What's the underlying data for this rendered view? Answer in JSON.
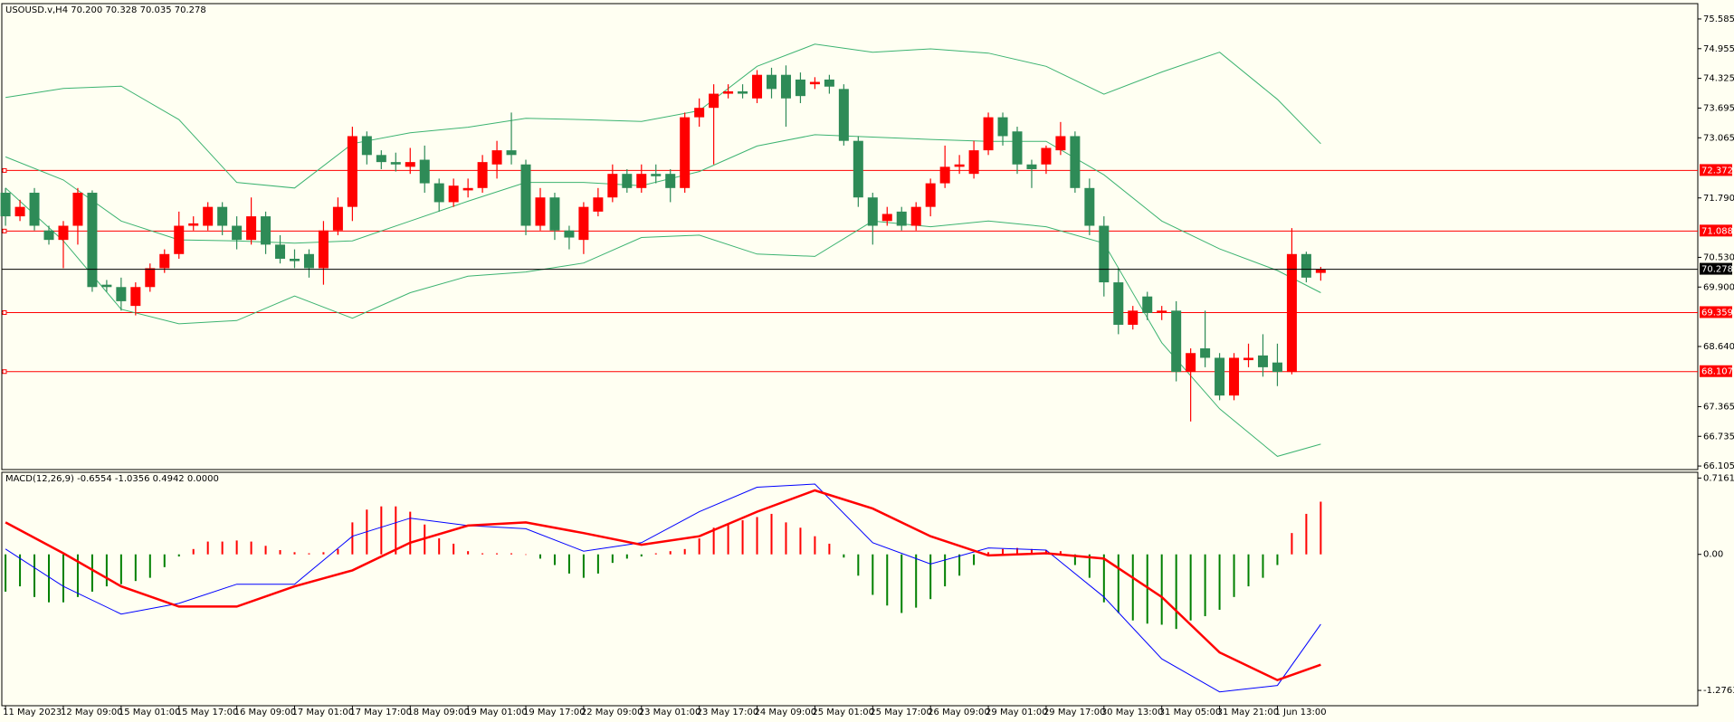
{
  "chart_data": [
    {
      "type": "candlestick",
      "title": "USOUSD.v,H4  70.200 70.328 70.035 70.278",
      "candles": {
        "open": [
          71.9,
          71.4,
          71.9,
          71.1,
          70.9,
          71.2,
          71.9,
          69.95,
          69.9,
          69.5,
          69.9,
          70.3,
          70.6,
          71.2,
          71.2,
          71.6,
          71.2,
          70.9,
          71.4,
          70.8,
          70.5,
          70.6,
          70.3,
          71.1,
          71.6,
          73.1,
          72.7,
          72.55,
          72.45,
          72.6,
          72.1,
          71.7,
          71.95,
          72.0,
          72.5,
          72.8,
          72.5,
          71.2,
          71.8,
          71.1,
          70.9,
          71.5,
          71.8,
          72.3,
          72.0,
          72.3,
          72.3,
          72.0,
          73.5,
          73.7,
          74.0,
          74.05,
          73.9,
          74.4,
          74.4,
          74.3,
          74.2,
          74.3,
          74.1,
          73.0,
          71.8,
          71.3,
          71.5,
          71.2,
          71.6,
          72.1,
          72.45,
          72.3,
          72.8,
          73.5,
          73.2,
          72.5,
          72.5,
          72.8,
          73.1,
          72.0,
          71.2,
          70.0,
          69.1,
          69.7,
          69.35,
          69.4,
          68.1,
          68.6,
          68.4,
          67.6,
          68.35,
          68.45,
          68.3,
          68.1,
          70.6,
          70.2
        ],
        "high": [
          72.0,
          71.75,
          72.0,
          71.2,
          71.3,
          72.0,
          71.95,
          70.05,
          70.1,
          70.0,
          70.4,
          70.7,
          71.5,
          71.4,
          71.7,
          71.7,
          71.4,
          71.8,
          71.5,
          71.0,
          70.7,
          70.7,
          71.3,
          71.8,
          73.3,
          73.2,
          72.8,
          72.75,
          72.85,
          72.9,
          72.2,
          72.2,
          72.2,
          72.7,
          73.0,
          73.6,
          72.6,
          72.0,
          71.9,
          71.2,
          71.7,
          72.0,
          72.5,
          72.4,
          72.5,
          72.5,
          72.4,
          73.6,
          73.9,
          74.2,
          74.2,
          74.2,
          74.5,
          74.55,
          74.6,
          74.45,
          74.35,
          74.4,
          74.2,
          73.1,
          71.9,
          71.6,
          71.6,
          71.7,
          72.2,
          72.9,
          72.7,
          73.0,
          73.6,
          73.6,
          73.3,
          72.6,
          72.9,
          73.4,
          73.2,
          72.2,
          71.4,
          70.3,
          69.5,
          69.8,
          69.5,
          69.6,
          68.6,
          69.4,
          68.5,
          68.5,
          68.7,
          68.9,
          68.7,
          71.15,
          70.65,
          70.328
        ],
        "low": [
          71.2,
          71.3,
          71.1,
          70.8,
          70.3,
          70.8,
          69.8,
          69.8,
          69.4,
          69.3,
          69.8,
          70.2,
          70.5,
          71.1,
          71.1,
          71.0,
          70.7,
          70.8,
          70.6,
          70.4,
          70.3,
          70.1,
          69.95,
          71.0,
          71.3,
          72.5,
          72.4,
          72.35,
          72.3,
          71.9,
          71.5,
          71.6,
          71.8,
          71.9,
          72.2,
          72.5,
          71.0,
          71.1,
          70.9,
          70.7,
          70.6,
          71.4,
          71.7,
          71.9,
          71.9,
          72.1,
          71.7,
          71.9,
          73.3,
          72.5,
          73.9,
          73.9,
          73.8,
          73.9,
          73.3,
          73.8,
          74.1,
          74.0,
          72.9,
          71.6,
          70.8,
          71.2,
          71.1,
          71.1,
          71.4,
          72.0,
          72.3,
          72.2,
          72.7,
          72.9,
          72.3,
          72.0,
          72.3,
          72.7,
          71.9,
          71.0,
          69.7,
          68.9,
          69.0,
          69.2,
          69.2,
          67.9,
          67.05,
          68.2,
          67.5,
          67.5,
          68.2,
          68.0,
          67.8,
          68.05,
          70.0,
          70.035
        ],
        "close": [
          71.4,
          71.6,
          71.2,
          70.9,
          71.2,
          71.9,
          69.9,
          69.9,
          69.6,
          69.9,
          70.3,
          70.6,
          71.2,
          71.25,
          71.6,
          71.2,
          70.9,
          71.4,
          70.8,
          70.5,
          70.45,
          70.3,
          71.1,
          71.6,
          73.1,
          72.7,
          72.55,
          72.5,
          72.55,
          72.1,
          71.7,
          72.05,
          72.0,
          72.55,
          72.8,
          72.7,
          71.2,
          71.8,
          71.1,
          70.95,
          71.6,
          71.8,
          72.3,
          72.0,
          72.3,
          72.25,
          72.0,
          73.5,
          73.7,
          74.0,
          74.05,
          74.0,
          74.4,
          74.1,
          73.9,
          73.95,
          74.25,
          74.15,
          73.0,
          71.8,
          71.2,
          71.45,
          71.2,
          71.6,
          72.1,
          72.45,
          72.5,
          72.8,
          73.5,
          73.1,
          72.5,
          72.4,
          72.85,
          73.1,
          72.0,
          71.2,
          70.0,
          69.1,
          69.4,
          69.35,
          69.4,
          68.1,
          68.5,
          68.4,
          67.6,
          68.4,
          68.4,
          68.2,
          68.1,
          70.6,
          70.1,
          70.278
        ]
      },
      "up_color": "#ff0000",
      "down_color": "#2e8b57",
      "series": [
        {
          "color": "#3cb371",
          "x": [
            0,
            4,
            8,
            12,
            16,
            20,
            24,
            28,
            32,
            36,
            40,
            44,
            48,
            52,
            56,
            60,
            64,
            68,
            72,
            76,
            80,
            84,
            88,
            91
          ],
          "values": [
            73.92,
            74.11,
            74.16,
            73.45,
            72.12,
            72.0,
            72.94,
            73.17,
            73.29,
            73.48,
            73.45,
            73.41,
            73.64,
            74.58,
            75.05,
            74.88,
            74.95,
            74.86,
            74.58,
            73.99,
            74.46,
            74.88,
            73.88,
            72.94
          ]
        },
        {
          "color": "#3cb371",
          "x": [
            0,
            4,
            8,
            12,
            16,
            20,
            24,
            28,
            32,
            36,
            40,
            44,
            48,
            52,
            56,
            60,
            64,
            68,
            72,
            76,
            80,
            84,
            88,
            91
          ],
          "values": [
            72.66,
            72.17,
            71.3,
            70.9,
            70.88,
            70.83,
            70.88,
            71.3,
            71.72,
            72.12,
            72.12,
            72.05,
            72.35,
            72.89,
            73.13,
            73.08,
            73.03,
            72.99,
            72.99,
            72.28,
            71.3,
            70.71,
            70.25,
            69.78
          ]
        },
        {
          "color": "#3cb371",
          "x": [
            0,
            4,
            8,
            12,
            16,
            20,
            24,
            28,
            32,
            36,
            40,
            44,
            48,
            52,
            56,
            60,
            64,
            68,
            72,
            76,
            80,
            84,
            88,
            91
          ],
          "values": [
            72.0,
            70.88,
            69.43,
            69.12,
            69.19,
            69.71,
            69.24,
            69.78,
            70.13,
            70.22,
            70.41,
            70.95,
            71.0,
            70.6,
            70.55,
            71.3,
            71.18,
            71.3,
            71.18,
            70.83,
            68.72,
            67.32,
            66.31,
            66.57
          ]
        }
      ],
      "levels": {
        "values": [
          72.372,
          71.088,
          69.359,
          68.107
        ],
        "color": "#ff0000"
      },
      "price_line_color": "#000000",
      "ylim": [
        66.03,
        75.91
      ],
      "yticks": [
        75.585,
        74.955,
        74.325,
        73.695,
        73.065,
        {
          "value": 71.79,
          "label": "71.790"
        },
        {
          "value": 70.53,
          "label": "70.530"
        },
        {
          "value": 69.9,
          "label": "69.900"
        },
        {
          "value": 68.64,
          "label": "68.640"
        },
        67.365,
        66.735,
        66.105
      ]
    },
    {
      "type": "macd",
      "title": "MACD(12,26,9) -0.6554 -1.0356 0.4942 0.0000",
      "histogram": {
        "up_color": "#ff0000",
        "down_color": "#008000",
        "values": [
          -0.35,
          -0.3,
          -0.4,
          -0.45,
          -0.45,
          -0.4,
          -0.35,
          -0.3,
          -0.28,
          -0.25,
          -0.22,
          -0.12,
          -0.02,
          0.05,
          0.12,
          0.12,
          0.13,
          0.12,
          0.08,
          0.04,
          0.02,
          0.01,
          0.02,
          0.05,
          0.3,
          0.42,
          0.45,
          0.45,
          0.4,
          0.28,
          0.15,
          0.1,
          0.03,
          0.01,
          0.01,
          0.01,
          0,
          -0.04,
          -0.1,
          -0.18,
          -0.22,
          -0.18,
          -0.08,
          -0.04,
          -0.02,
          0.01,
          0.03,
          0.05,
          0.15,
          0.25,
          0.28,
          0.32,
          0.35,
          0.38,
          0.3,
          0.25,
          0.17,
          0.1,
          -0.03,
          -0.2,
          -0.38,
          -0.48,
          -0.55,
          -0.5,
          -0.42,
          -0.3,
          -0.2,
          -0.1,
          0.02,
          0.05,
          0.06,
          0.05,
          0.04,
          0.03,
          -0.1,
          -0.22,
          -0.45,
          -0.55,
          -0.62,
          -0.65,
          -0.66,
          -0.7,
          -0.62,
          -0.58,
          -0.52,
          -0.4,
          -0.3,
          -0.22,
          -0.1,
          0.2,
          0.38,
          0.4942
        ]
      },
      "series": [
        {
          "color": "#0000ff",
          "width": 1,
          "x": [
            0,
            4,
            8,
            12,
            16,
            20,
            24,
            28,
            32,
            36,
            40,
            44,
            48,
            52,
            56,
            60,
            64,
            68,
            72,
            76,
            80,
            84,
            88,
            91
          ],
          "values": [
            0.05,
            -0.3,
            -0.56,
            -0.46,
            -0.28,
            -0.28,
            0.17,
            0.34,
            0.27,
            0.24,
            0.03,
            0.11,
            0.4,
            0.63,
            0.66,
            0.11,
            -0.09,
            0.06,
            0.04,
            -0.4,
            -0.98,
            -1.29,
            -1.23,
            -0.6554
          ]
        },
        {
          "color": "#ff0000",
          "width": 2.5,
          "x": [
            0,
            4,
            8,
            12,
            16,
            20,
            24,
            28,
            32,
            36,
            40,
            44,
            48,
            52,
            56,
            60,
            64,
            68,
            72,
            76,
            80,
            84,
            88,
            91
          ],
          "values": [
            0.3,
            0.01,
            -0.3,
            -0.49,
            -0.49,
            -0.3,
            -0.15,
            0.11,
            0.27,
            0.3,
            0.2,
            0.09,
            0.17,
            0.4,
            0.6,
            0.43,
            0.17,
            -0.01,
            0.01,
            -0.04,
            -0.4,
            -0.92,
            -1.18,
            -1.0356
          ]
        }
      ],
      "ylim": [
        -1.42,
        0.77
      ],
      "yticks": [
        0.7161,
        {
          "value": 0,
          "label": "0.00"
        },
        -1.2763
      ],
      "categories": [
        "11 May 2023",
        null,
        null,
        null,
        "12 May 09:00",
        null,
        null,
        null,
        "15 May 01:00",
        null,
        null,
        null,
        "15 May 17:00",
        null,
        null,
        null,
        "16 May 09:00",
        null,
        null,
        null,
        "17 May 01:00",
        null,
        null,
        null,
        "17 May 17:00",
        null,
        null,
        null,
        "18 May 09:00",
        null,
        null,
        null,
        "19 May 01:00",
        null,
        null,
        null,
        "19 May 17:00",
        null,
        null,
        null,
        "22 May 09:00",
        null,
        null,
        null,
        "23 May 01:00",
        null,
        null,
        null,
        "23 May 17:00",
        null,
        null,
        null,
        "24 May 09:00",
        null,
        null,
        null,
        "25 May 01:00",
        null,
        null,
        null,
        "25 May 17:00",
        null,
        null,
        null,
        "26 May 09:00",
        null,
        null,
        null,
        "29 May 01:00",
        null,
        null,
        null,
        "29 May 17:00",
        null,
        null,
        null,
        "30 May 13:00",
        null,
        null,
        null,
        "31 May 05:00",
        null,
        null,
        null,
        "31 May 21:00",
        null,
        null,
        null,
        "1 Jun 13:00",
        null,
        null,
        null
      ]
    }
  ]
}
